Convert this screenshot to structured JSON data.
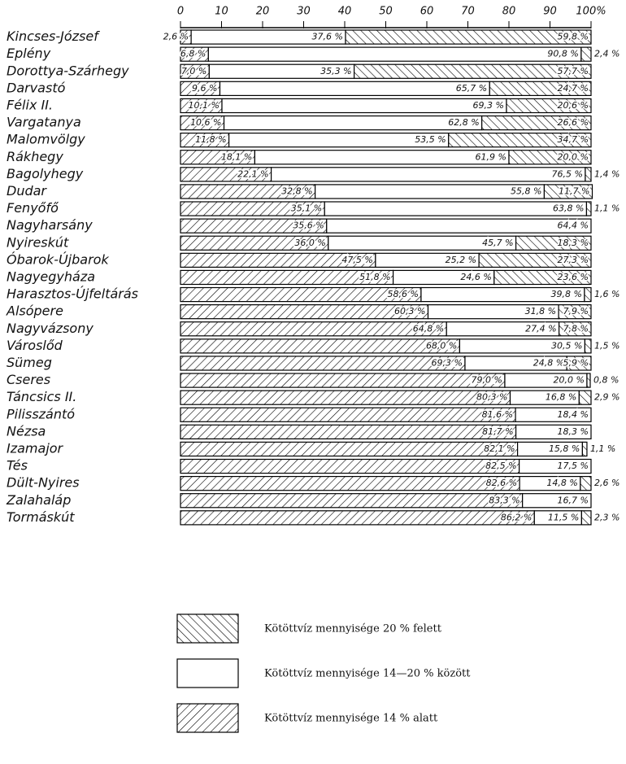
{
  "chart_data": {
    "type": "stacked-barh",
    "categories": [
      "Kincses-József",
      "Eplény",
      "Dorottya-Szárhegy",
      "Darvastó",
      "Félix II.",
      "Vargatanya",
      "Malomvölgy",
      "Rákhegy",
      "Bagolyhegy",
      "Dudar",
      "Fenyőfő",
      "Nagyharsány",
      "Nyireskút",
      "Óbarok-Újbarok",
      "Nagyegyháza",
      "Harasztos-Újfeltárás",
      "Alsópere",
      "Nagyvázsony",
      "Városlőd",
      "Sümeg",
      "Cseres",
      "Táncsics II.",
      "Pilisszántó",
      "Nézsa",
      "Izamajor",
      "Tés",
      "Dült-Nyires",
      "Zalahaláp",
      "Tormáskút"
    ],
    "xlim": [
      0,
      100
    ],
    "xticks": [
      0,
      10,
      20,
      30,
      40,
      50,
      60,
      70,
      80,
      90,
      {
        "value": 100,
        "label": "100%"
      }
    ],
    "series": [
      {
        "name": "Kötöttvíz mennyisége 14 % alatt",
        "color": "#000000",
        "hatch": "forward",
        "values": [
          2.6,
          6.8,
          7.0,
          9.6,
          10.1,
          10.6,
          11.8,
          18.1,
          22.1,
          32.8,
          35.1,
          35.6,
          36.0,
          47.5,
          51.8,
          58.6,
          60.3,
          64.8,
          68.0,
          69.3,
          79.0,
          80.3,
          81.6,
          81.7,
          82.1,
          82.5,
          82.6,
          83.3,
          86.2
        ],
        "value_labels": [
          "2,6 %",
          "6,8 %",
          "7,0 %",
          "9,6 %",
          "10,1 %",
          "10,6 %",
          "11,8 %",
          "18,1 %",
          "22,1 %",
          "32,8 %",
          "35,1 %",
          "35,6 %",
          "36,0 %",
          "47,5 %",
          "51,8 %",
          "58,6 %",
          "60,3 %",
          "64,8 %",
          "68,0 %",
          "69,3 %",
          "79,0 %",
          "80,3 %",
          "81,6 %",
          "81,7 %",
          "82,1 %",
          "82,5 %",
          "82,6 %",
          "83,3 %",
          "86,2 %"
        ]
      },
      {
        "name": "Kötöttvíz mennyisége 14—20 % között",
        "color": "#000000",
        "hatch": "none",
        "values": [
          37.6,
          90.8,
          35.3,
          65.7,
          69.3,
          62.8,
          53.5,
          61.9,
          76.5,
          55.8,
          63.8,
          64.4,
          45.7,
          25.2,
          24.6,
          39.8,
          31.8,
          27.4,
          30.5,
          24.8,
          20.0,
          16.8,
          18.4,
          18.3,
          15.8,
          17.5,
          14.8,
          16.7,
          11.5
        ],
        "value_labels": [
          "37,6 %",
          "90,8 %",
          "35,3 %",
          "65,7 %",
          "69,3 %",
          "62,8 %",
          "53,5 %",
          "61,9 %",
          "76,5 %",
          "55,8 %",
          "63,8 %",
          "64,4 %",
          "45,7 %",
          "25,2 %",
          "24,6 %",
          "39,8 %",
          "31,8 %",
          "27,4 %",
          "30,5 %",
          "24,8 %",
          "20,0 %",
          "16,8 %",
          "18,4 %",
          "18,3 %",
          "15,8 %",
          "17,5 %",
          "14,8 %",
          "16,7 %",
          "11,5 %"
        ]
      },
      {
        "name": "Kötöttvíz mennyisége 20 % felett",
        "color": "#000000",
        "hatch": "back",
        "values": [
          59.8,
          2.4,
          57.7,
          24.7,
          20.6,
          26.6,
          34.7,
          20.0,
          1.4,
          11.7,
          1.1,
          null,
          18.3,
          27.3,
          23.6,
          1.6,
          7.9,
          7.8,
          1.5,
          5.9,
          0.8,
          2.9,
          null,
          null,
          1.1,
          null,
          2.6,
          null,
          2.3
        ],
        "value_labels": [
          "59,8 %",
          "2,4 %",
          "57,7 %",
          "24,7 %",
          "20,6 %",
          "26,6 %",
          "34,7 %",
          "20,0 %",
          "1,4 %",
          "11,7 %",
          "1,1 %",
          null,
          "18,3 %",
          "27,3 %",
          "23,6 %",
          "1,6 %",
          "7,9 %",
          "7,8 %",
          "1,5 %",
          "5,9 %",
          "0,8 %",
          "2,9 %",
          null,
          null,
          "1,1 %",
          null,
          "2,6 %",
          null,
          "2,3 %"
        ]
      }
    ]
  }
}
